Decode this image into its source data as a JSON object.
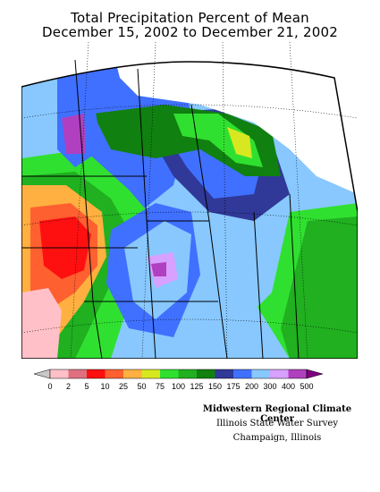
{
  "title": {
    "line1": "Total Precipitation Percent of Mean",
    "line2": "December 15, 2002 to December 21, 2002"
  },
  "legend": {
    "ticks": [
      "0",
      "2",
      "5",
      "10",
      "25",
      "50",
      "75",
      "100",
      "125",
      "150",
      "175",
      "200",
      "300",
      "400",
      "500"
    ],
    "colors": [
      "#c8c8c8",
      "#ffc0c8",
      "#e07080",
      "#ff1010",
      "#ff6030",
      "#ffb040",
      "#d8e820",
      "#30e030",
      "#20b020",
      "#108010",
      "#303898",
      "#4070ff",
      "#88c8ff",
      "#d8a0ff",
      "#b040c0",
      "#800080"
    ]
  },
  "credits": {
    "line1": "Midwestern Regional Climate Center",
    "line2": "Illinois State Water Survey",
    "line3": "Champaign, Illinois"
  }
}
